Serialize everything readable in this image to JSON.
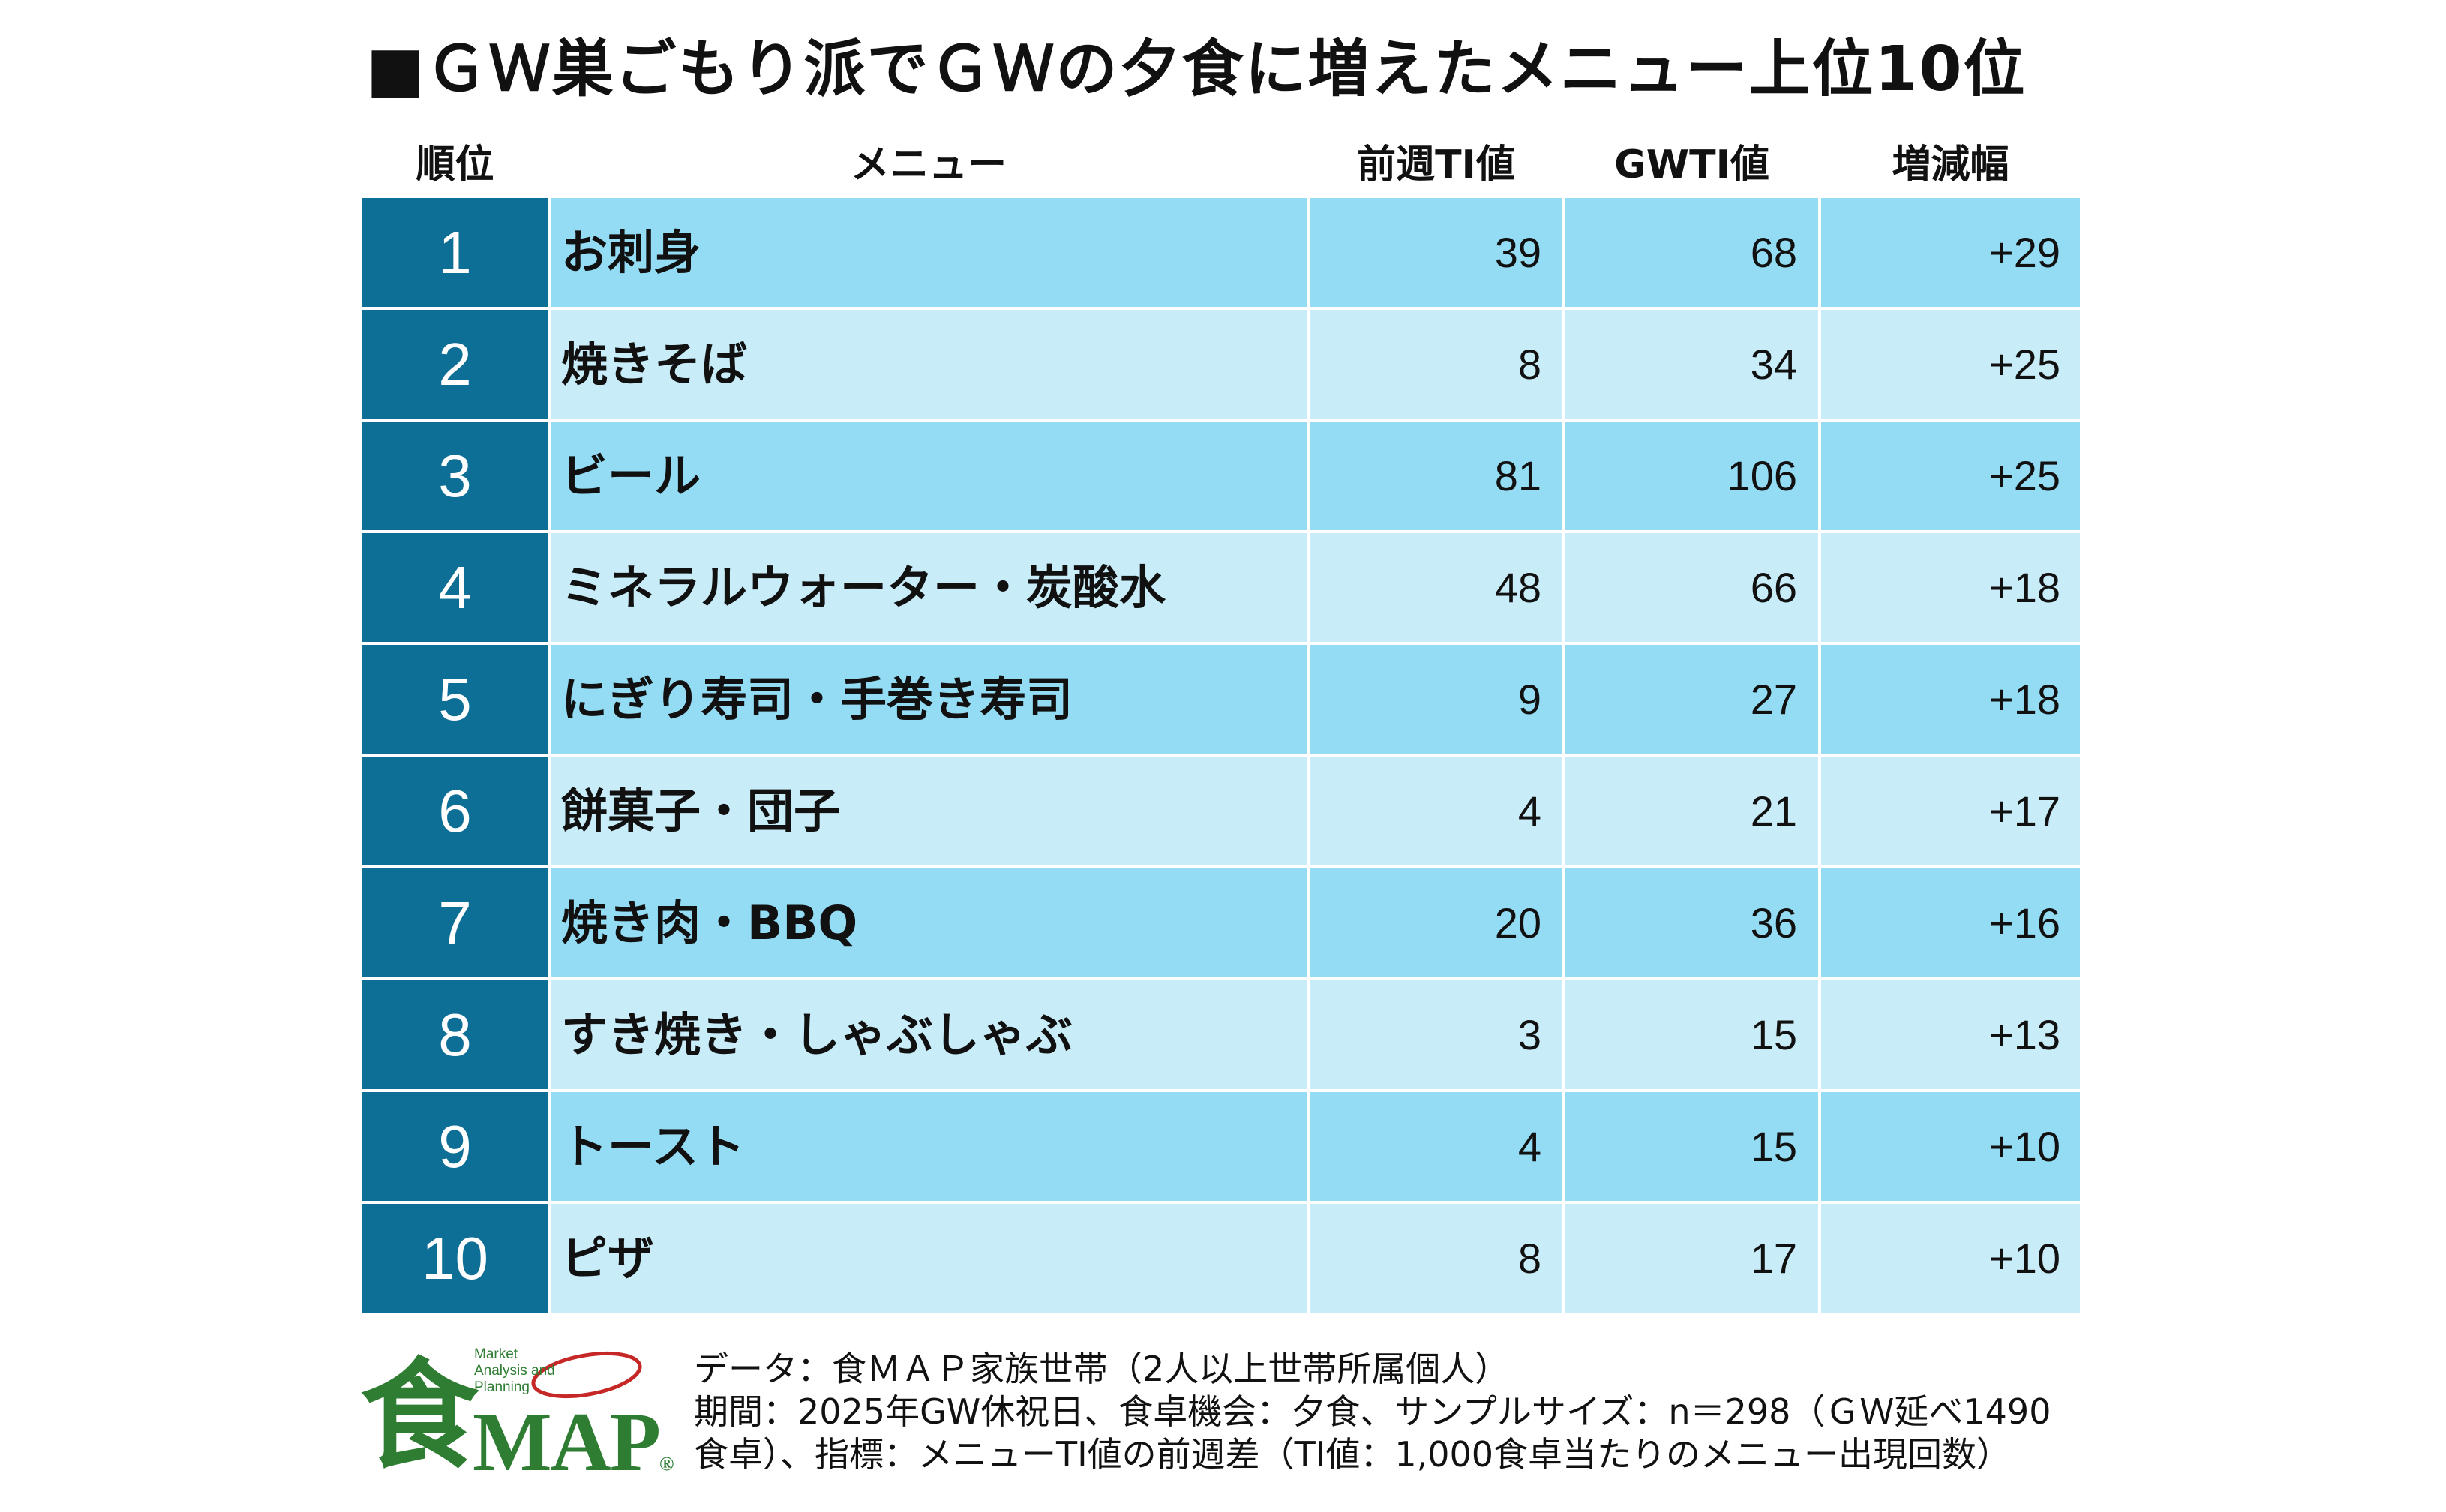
{
  "title": "■ＧＷ巣ごもり派でＧＷの夕食に増えたメニュー上位10位",
  "headers": {
    "rank": "順位",
    "menu": "メニュー",
    "prev": "前週TI値",
    "gw": "GWTI値",
    "diff": "増減幅"
  },
  "colors": {
    "rank_bg": "#0e6f96",
    "row_dark": "#94dcf4",
    "row_light": "#c9ecf9",
    "logo_green": "#2e7d32",
    "logo_red": "#c62828"
  },
  "rows": [
    {
      "rank": "1",
      "menu": "お刺身",
      "prev": "39",
      "gw": "68",
      "diff": "+29"
    },
    {
      "rank": "2",
      "menu": "焼きそば",
      "prev": "8",
      "gw": "34",
      "diff": "+25"
    },
    {
      "rank": "3",
      "menu": "ビール",
      "prev": "81",
      "gw": "106",
      "diff": "+25"
    },
    {
      "rank": "4",
      "menu": "ミネラルウォーター・炭酸水",
      "prev": "48",
      "gw": "66",
      "diff": "+18"
    },
    {
      "rank": "5",
      "menu": "にぎり寿司・手巻き寿司",
      "prev": "9",
      "gw": "27",
      "diff": "+18"
    },
    {
      "rank": "6",
      "menu": "餅菓子・団子",
      "prev": "4",
      "gw": "21",
      "diff": "+17"
    },
    {
      "rank": "7",
      "menu": "焼き肉・BBQ",
      "prev": "20",
      "gw": "36",
      "diff": "+16"
    },
    {
      "rank": "8",
      "menu": "すき焼き・しゃぶしゃぶ",
      "prev": "3",
      "gw": "15",
      "diff": "+13"
    },
    {
      "rank": "9",
      "menu": "トースト",
      "prev": "4",
      "gw": "15",
      "diff": "+10"
    },
    {
      "rank": "10",
      "menu": "ピザ",
      "prev": "8",
      "gw": "17",
      "diff": "+10"
    }
  ],
  "logo": {
    "kanji": "食",
    "text": "MAP",
    "registered": "®",
    "tagline": [
      "Market",
      "Analysis and",
      "Planning"
    ]
  },
  "footnote": [
    "データ：食ＭＡＰ家族世帯（2人以上世帯所属個人）",
    "期間：2025年GW休祝日、食卓機会：夕食、サンプルサイズ：n＝298（ＧＷ延べ1490",
    "食卓）、指標：メニューTI値の前週差（TI値：1,000食卓当たりのメニュー出現回数）"
  ]
}
